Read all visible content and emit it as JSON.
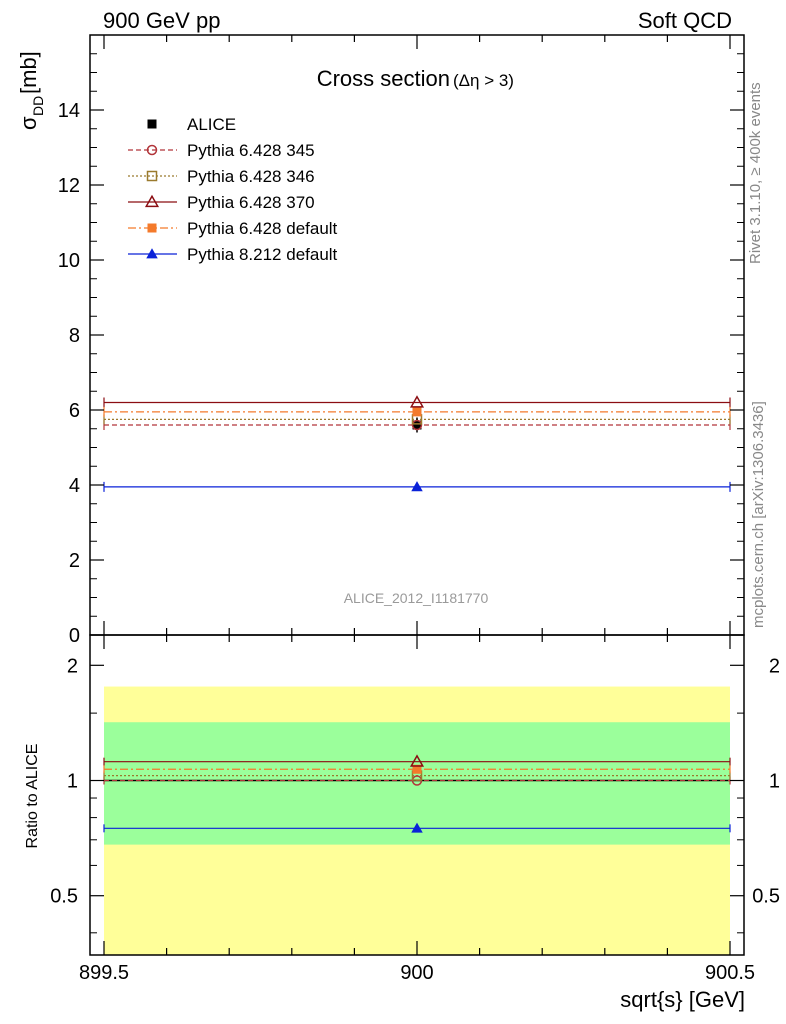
{
  "header": {
    "left": "900 GeV pp",
    "right": "Soft QCD"
  },
  "side_labels": {
    "rivet": "Rivet 3.1.10, ≥ 400k events",
    "mcplots": "mcplots.cern.ch [arXiv:1306.3436]"
  },
  "chart_data": [
    {
      "type": "scatter",
      "title": "Cross section",
      "title_sub": "(Δη > 3)",
      "analysis_id": "ALICE_2012_I1181770",
      "xlabel": "sqrt{s} [GeV]",
      "ylabel": "σ",
      "ylabel_sub": "DD",
      "ylabel_unit": " [mb]",
      "xlim": [
        899.5,
        900.5
      ],
      "ylim": [
        0,
        16
      ],
      "xticks": [
        {
          "value": 899.5,
          "label": "899.5"
        },
        {
          "value": 900,
          "label": "900"
        },
        {
          "value": 900.5,
          "label": "900.5"
        }
      ],
      "yticks": [
        {
          "value": 0,
          "label": "0"
        },
        {
          "value": 2,
          "label": "2"
        },
        {
          "value": 4,
          "label": "4"
        },
        {
          "value": 6,
          "label": "6"
        },
        {
          "value": 8,
          "label": "8"
        },
        {
          "value": 10,
          "label": "10"
        },
        {
          "value": 12,
          "label": "12"
        },
        {
          "value": 14,
          "label": "14"
        }
      ],
      "series": [
        {
          "name": "ALICE",
          "x": 900,
          "y": 5.6,
          "yerr": 0.2,
          "marker": "square-filled",
          "color": "#000000",
          "line": "none"
        },
        {
          "name": "Pythia 6.428 345",
          "x": 900,
          "y": 5.6,
          "marker": "circle-open",
          "color": "#b2353a",
          "line": "dashed"
        },
        {
          "name": "Pythia 6.428 346",
          "x": 900,
          "y": 5.75,
          "marker": "square-open",
          "color": "#9a7a2e",
          "line": "dotted"
        },
        {
          "name": "Pythia 6.428 370",
          "x": 900,
          "y": 6.2,
          "marker": "triangle-open",
          "color": "#8b0d12",
          "line": "solid"
        },
        {
          "name": "Pythia 6.428 default",
          "x": 900,
          "y": 5.95,
          "marker": "square-filled",
          "color": "#f47a2b",
          "line": "dashdot"
        },
        {
          "name": "Pythia 8.212 default",
          "x": 900,
          "y": 3.95,
          "marker": "triangle-filled",
          "color": "#0a22d8",
          "line": "solid"
        }
      ]
    },
    {
      "type": "scatter",
      "title": "Ratio to ALICE",
      "ylabel": "Ratio to ALICE",
      "yscale": "log",
      "ylim": [
        0.35,
        2.4
      ],
      "yticks": [
        {
          "value": 0.5,
          "label": "0.5"
        },
        {
          "value": 1,
          "label": "1"
        },
        {
          "value": 2,
          "label": "2"
        }
      ],
      "bands": [
        {
          "name": "2 sigma",
          "low": 0.35,
          "high": 1.76,
          "color": "#ffff99"
        },
        {
          "name": "1 sigma",
          "low": 0.68,
          "high": 1.42,
          "color": "#9bff9b"
        }
      ],
      "series": [
        {
          "name": "Pythia 6.428 345",
          "y": 1.0
        },
        {
          "name": "Pythia 6.428 346",
          "y": 1.03
        },
        {
          "name": "Pythia 6.428 370",
          "y": 1.12
        },
        {
          "name": "Pythia 6.428 default",
          "y": 1.07
        },
        {
          "name": "Pythia 8.212 default",
          "y": 0.75
        }
      ]
    }
  ]
}
